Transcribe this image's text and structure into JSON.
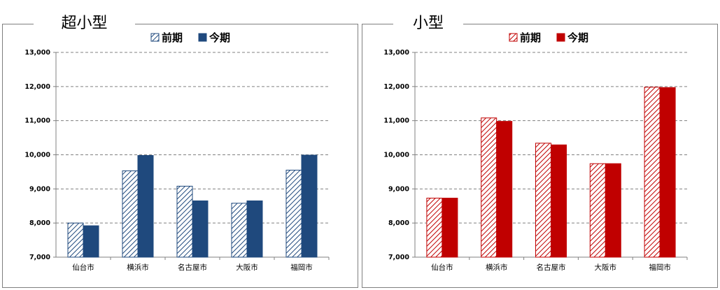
{
  "chart_data": [
    {
      "type": "bar",
      "title": "超小型",
      "categories": [
        "仙台市",
        "横浜市",
        "名古屋市",
        "大阪市",
        "福岡市"
      ],
      "series": [
        {
          "name": "前期",
          "values": [
            8000,
            9530,
            9080,
            8580,
            9550
          ],
          "pattern": "hatched"
        },
        {
          "name": "今期",
          "values": [
            7920,
            9980,
            8650,
            8650,
            9990
          ],
          "pattern": "solid"
        }
      ],
      "ylim": [
        7000,
        13000
      ],
      "yticks": [
        "7,000",
        "8,000",
        "9,000",
        "10,000",
        "11,000",
        "12,000",
        "13,000"
      ],
      "color": "#1f497d",
      "legend": "top-center",
      "grid": "dashed horizontal"
    },
    {
      "type": "bar",
      "title": "小型",
      "categories": [
        "仙台市",
        "横浜市",
        "名古屋市",
        "大阪市",
        "福岡市"
      ],
      "series": [
        {
          "name": "前期",
          "values": [
            8730,
            11080,
            10340,
            9740,
            11980
          ],
          "pattern": "hatched"
        },
        {
          "name": "今期",
          "values": [
            8730,
            10980,
            10290,
            9740,
            11970
          ],
          "pattern": "solid"
        }
      ],
      "ylim": [
        7000,
        13000
      ],
      "yticks": [
        "7,000",
        "8,000",
        "9,000",
        "10,000",
        "11,000",
        "12,000",
        "13,000"
      ],
      "color": "#c00000",
      "legend": "top-center",
      "grid": "dashed horizontal"
    }
  ]
}
